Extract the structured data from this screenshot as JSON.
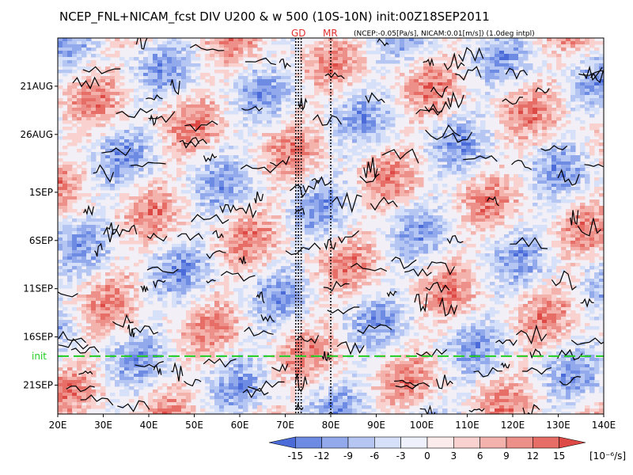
{
  "title": "NCEP_FNL+NICAM_fcst DIV U200 & w 500 (10S-10N) init:00Z18SEP2011",
  "subtitle": "(NCEP:-0.05[Pa/s], NICAM:0.01[m/s]) (1.0deg intpl)",
  "markers": {
    "gd": "GD",
    "mr": "MR"
  },
  "init_label": "init",
  "chart_data": {
    "type": "heatmap",
    "title": "NCEP_FNL+NICAM_fcst DIV U200 & w 500 (10S-10N) init:00Z18SEP2011",
    "xlabel": "",
    "ylabel": "",
    "x_ticks": [
      "20E",
      "30E",
      "40E",
      "50E",
      "60E",
      "70E",
      "80E",
      "90E",
      "100E",
      "110E",
      "120E",
      "130E",
      "140E"
    ],
    "x_range": [
      20,
      140
    ],
    "y_ticks": [
      "21AUG",
      "26AUG",
      "1SEP",
      "6SEP",
      "11SEP",
      "16SEP",
      "21SEP"
    ],
    "y_tick_days": [
      21,
      26,
      32,
      37,
      42,
      47,
      52
    ],
    "y_range_days": [
      16,
      55
    ],
    "init_day": 49,
    "vertical_lines_lon": [
      72.3,
      72.9,
      73.5,
      80.0
    ],
    "colorbar": {
      "labels": [
        "-15",
        "-12",
        "-9",
        "-6",
        "-3",
        "0",
        "3",
        "6",
        "9",
        "12",
        "15"
      ],
      "unit": "[10⁻⁶/s]",
      "colors": [
        "#4a6bd8",
        "#6d8be3",
        "#92a9ec",
        "#b6c6f3",
        "#d6e0f8",
        "#eef1fb",
        "#fbeceb",
        "#f9d2cf",
        "#f4b2ad",
        "#ee908a",
        "#e76d67",
        "#dd4a45"
      ]
    }
  }
}
